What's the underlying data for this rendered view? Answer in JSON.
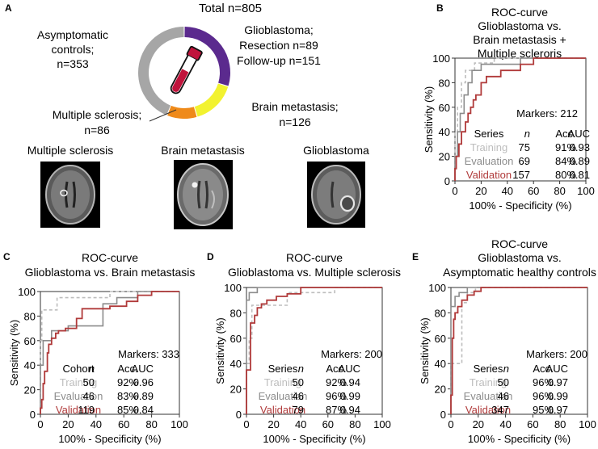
{
  "panel_labels": {
    "A": "A",
    "B": "B",
    "C": "C",
    "D": "D",
    "E": "E"
  },
  "colors": {
    "training": "#bdbdbd",
    "evaluation": "#8c8c8c",
    "validation": "#b03a3a",
    "tube": "#c0143c"
  },
  "donut": {
    "total": "Total n=805",
    "labels": {
      "asymptomatic": [
        "Asymptomatic",
        "controls;",
        "n=353"
      ],
      "glioblastoma": [
        "Glioblastoma;",
        "Resection n=89",
        "Follow-up n=151"
      ],
      "brain_metastasis": [
        "Brain metastasis;",
        "n=126"
      ],
      "multiple_sclerosis": [
        "Multiple sclerosis;",
        "n=86"
      ]
    }
  },
  "mri": {
    "labels": [
      "Multiple sclerosis",
      "Brain metastasis",
      "Glioblastoma"
    ]
  },
  "chart_data": [
    {
      "type": "pie",
      "title": "Total n=805",
      "slices": [
        {
          "name": "Glioblastoma",
          "value": 240,
          "color": "#5b2a8e"
        },
        {
          "name": "Brain metastasis",
          "value": 126,
          "color": "#f2f230"
        },
        {
          "name": "Multiple sclerosis",
          "value": 86,
          "color": "#ef8a1a"
        },
        {
          "name": "Asymptomatic controls",
          "value": 353,
          "color": "#a6a6a6"
        }
      ]
    },
    {
      "id": "B",
      "type": "line",
      "title": [
        "ROC-curve",
        "Glioblastoma vs.",
        "Brain metastasis +",
        "Multiple scleroris"
      ],
      "xlabel": "100% - Specificity (%)",
      "ylabel": "Sensitivity (%)",
      "xlim": [
        0,
        100
      ],
      "ylim": [
        0,
        100
      ],
      "xticks": [
        "0",
        "20",
        "40",
        "60",
        "80",
        "100"
      ],
      "yticks": [
        "0",
        "20",
        "40",
        "60",
        "80",
        "100"
      ],
      "markers": "Markers: 212",
      "legend": {
        "header": [
          "Series",
          "n",
          "Acc.",
          "AUC"
        ],
        "rows": [
          [
            "Training",
            "75",
            "91%",
            "0.93"
          ],
          [
            "Evaluation",
            "69",
            "84%",
            "0.89"
          ],
          [
            "Validation",
            "157",
            "80%",
            "0.81"
          ]
        ]
      },
      "series": [
        {
          "name": "Training",
          "style": "dashed",
          "points": [
            [
              0,
              0
            ],
            [
              0,
              40
            ],
            [
              2,
              40
            ],
            [
              2,
              60
            ],
            [
              5,
              60
            ],
            [
              5,
              80
            ],
            [
              8,
              80
            ],
            [
              8,
              90
            ],
            [
              15,
              90
            ],
            [
              15,
              96
            ],
            [
              30,
              96
            ],
            [
              30,
              100
            ],
            [
              100,
              100
            ]
          ]
        },
        {
          "name": "Evaluation",
          "points": [
            [
              0,
              0
            ],
            [
              0,
              20
            ],
            [
              2,
              20
            ],
            [
              2,
              40
            ],
            [
              4,
              40
            ],
            [
              4,
              55
            ],
            [
              7,
              55
            ],
            [
              7,
              70
            ],
            [
              10,
              70
            ],
            [
              10,
              80
            ],
            [
              13,
              80
            ],
            [
              13,
              90
            ],
            [
              20,
              90
            ],
            [
              20,
              95
            ],
            [
              50,
              95
            ],
            [
              50,
              100
            ],
            [
              100,
              100
            ]
          ]
        },
        {
          "name": "Validation",
          "points": [
            [
              0,
              0
            ],
            [
              0,
              10
            ],
            [
              1,
              10
            ],
            [
              1,
              20
            ],
            [
              3,
              20
            ],
            [
              3,
              30
            ],
            [
              5,
              30
            ],
            [
              5,
              40
            ],
            [
              8,
              40
            ],
            [
              8,
              48
            ],
            [
              10,
              48
            ],
            [
              10,
              55
            ],
            [
              12,
              55
            ],
            [
              12,
              60
            ],
            [
              14,
              60
            ],
            [
              14,
              66
            ],
            [
              16,
              66
            ],
            [
              16,
              70
            ],
            [
              20,
              70
            ],
            [
              20,
              80
            ],
            [
              24,
              80
            ],
            [
              24,
              85
            ],
            [
              35,
              85
            ],
            [
              35,
              90
            ],
            [
              50,
              90
            ],
            [
              50,
              95
            ],
            [
              60,
              95
            ],
            [
              60,
              100
            ],
            [
              100,
              100
            ]
          ]
        }
      ]
    },
    {
      "id": "C",
      "type": "line",
      "title": [
        "ROC-curve",
        "Glioblastoma vs. Brain metastasis"
      ],
      "xlabel": "100% - Specificity (%)",
      "ylabel": "Sensitivity (%)",
      "xlim": [
        0,
        100
      ],
      "ylim": [
        0,
        100
      ],
      "xticks": [
        "0",
        "20",
        "40",
        "60",
        "80",
        "100"
      ],
      "yticks": [
        "0",
        "20",
        "40",
        "60",
        "80",
        "100"
      ],
      "markers": "Markers: 333",
      "legend": {
        "header": [
          "Cohort",
          "n",
          "Acc.",
          "AUC"
        ],
        "rows": [
          [
            "Training",
            "50",
            "92%",
            "0.96"
          ],
          [
            "Evaluation",
            "46",
            "83%",
            "0.89"
          ],
          [
            "Validation",
            "119",
            "85%",
            "0.84"
          ]
        ]
      },
      "series": [
        {
          "name": "Training",
          "style": "dashed",
          "points": [
            [
              0,
              0
            ],
            [
              0,
              60
            ],
            [
              1,
              60
            ],
            [
              1,
              85
            ],
            [
              12,
              85
            ],
            [
              12,
              95
            ],
            [
              50,
              95
            ],
            [
              50,
              100
            ],
            [
              100,
              100
            ]
          ]
        },
        {
          "name": "Evaluation",
          "points": [
            [
              0,
              0
            ],
            [
              0,
              40
            ],
            [
              2,
              40
            ],
            [
              2,
              60
            ],
            [
              8,
              60
            ],
            [
              8,
              68
            ],
            [
              20,
              68
            ],
            [
              20,
              72
            ],
            [
              45,
              72
            ],
            [
              45,
              90
            ],
            [
              55,
              90
            ],
            [
              55,
              95
            ],
            [
              70,
              95
            ],
            [
              70,
              100
            ],
            [
              100,
              100
            ]
          ]
        },
        {
          "name": "Validation",
          "points": [
            [
              0,
              0
            ],
            [
              0,
              5
            ],
            [
              1,
              5
            ],
            [
              1,
              12
            ],
            [
              2,
              12
            ],
            [
              2,
              25
            ],
            [
              3,
              25
            ],
            [
              3,
              35
            ],
            [
              5,
              35
            ],
            [
              5,
              50
            ],
            [
              6,
              50
            ],
            [
              6,
              57
            ],
            [
              8,
              57
            ],
            [
              8,
              62
            ],
            [
              11,
              62
            ],
            [
              11,
              66
            ],
            [
              13,
              66
            ],
            [
              13,
              68
            ],
            [
              18,
              68
            ],
            [
              18,
              70
            ],
            [
              26,
              70
            ],
            [
              26,
              78
            ],
            [
              30,
              78
            ],
            [
              30,
              86
            ],
            [
              50,
              86
            ],
            [
              50,
              88
            ],
            [
              62,
              88
            ],
            [
              62,
              92
            ],
            [
              70,
              92
            ],
            [
              70,
              97
            ],
            [
              80,
              97
            ],
            [
              80,
              100
            ],
            [
              100,
              100
            ]
          ]
        }
      ]
    },
    {
      "id": "D",
      "type": "line",
      "title": [
        "ROC-curve",
        "Glioblastoma vs. Multiple sclerosis"
      ],
      "xlabel": "100% - Specificity (%)",
      "ylabel": "Sensitivity (%)",
      "xlim": [
        0,
        100
      ],
      "ylim": [
        0,
        100
      ],
      "xticks": [
        "0",
        "20",
        "40",
        "60",
        "80",
        "100"
      ],
      "yticks": [
        "0",
        "20",
        "40",
        "60",
        "80",
        "100"
      ],
      "markers": "Markers: 200",
      "legend": {
        "header": [
          "Series",
          "n",
          "Acc.",
          "AUC"
        ],
        "rows": [
          [
            "Training",
            "50",
            "92%",
            "0.94"
          ],
          [
            "Evaluation",
            "46",
            "96%",
            "0.99"
          ],
          [
            "Validation",
            "79",
            "87%",
            "0.94"
          ]
        ]
      },
      "series": [
        {
          "name": "Training",
          "style": "dashed",
          "points": [
            [
              0,
              0
            ],
            [
              0,
              40
            ],
            [
              2,
              40
            ],
            [
              2,
              60
            ],
            [
              4,
              60
            ],
            [
              4,
              86
            ],
            [
              30,
              86
            ],
            [
              30,
              96
            ],
            [
              65,
              96
            ],
            [
              65,
              100
            ],
            [
              100,
              100
            ]
          ]
        },
        {
          "name": "Evaluation",
          "points": [
            [
              0,
              0
            ],
            [
              0,
              90
            ],
            [
              2,
              90
            ],
            [
              2,
              96
            ],
            [
              8,
              96
            ],
            [
              8,
              100
            ],
            [
              100,
              100
            ]
          ]
        },
        {
          "name": "Validation",
          "points": [
            [
              0,
              0
            ],
            [
              0,
              35
            ],
            [
              3,
              35
            ],
            [
              3,
              72
            ],
            [
              6,
              72
            ],
            [
              6,
              78
            ],
            [
              8,
              78
            ],
            [
              8,
              84
            ],
            [
              11,
              84
            ],
            [
              11,
              87
            ],
            [
              15,
              87
            ],
            [
              15,
              90
            ],
            [
              22,
              90
            ],
            [
              22,
              93
            ],
            [
              30,
              93
            ],
            [
              30,
              95
            ],
            [
              40,
              95
            ],
            [
              40,
              100
            ],
            [
              100,
              100
            ]
          ]
        }
      ]
    },
    {
      "id": "E",
      "type": "line",
      "title": [
        "ROC-curve",
        "Glioblastoma vs.",
        "Asymptomatic healthy controls"
      ],
      "xlabel": "100% - Specificity (%)",
      "ylabel": "Sensitivity (%)",
      "xlim": [
        0,
        100
      ],
      "ylim": [
        0,
        100
      ],
      "xticks": [
        "0",
        "20",
        "40",
        "60",
        "80",
        "100"
      ],
      "yticks": [
        "0",
        "20",
        "40",
        "60",
        "80",
        "100"
      ],
      "markers": "Markers: 200",
      "legend": {
        "header": [
          "Series",
          "n",
          "Acc.",
          "AUC"
        ],
        "rows": [
          [
            "Training",
            "50",
            "96%",
            "0.97"
          ],
          [
            "Evaluation",
            "46",
            "96%",
            "0.99"
          ],
          [
            "Validation",
            "347",
            "95%",
            "0.97"
          ]
        ]
      },
      "series": [
        {
          "name": "Training",
          "style": "dashed",
          "points": [
            [
              0,
              0
            ],
            [
              0,
              40
            ],
            [
              8,
              40
            ],
            [
              8,
              88
            ],
            [
              12,
              88
            ],
            [
              12,
              96
            ],
            [
              18,
              96
            ],
            [
              18,
              100
            ],
            [
              100,
              100
            ]
          ]
        },
        {
          "name": "Evaluation",
          "points": [
            [
              0,
              0
            ],
            [
              0,
              85
            ],
            [
              3,
              85
            ],
            [
              3,
              93
            ],
            [
              6,
              93
            ],
            [
              6,
              96
            ],
            [
              12,
              96
            ],
            [
              12,
              100
            ],
            [
              100,
              100
            ]
          ]
        },
        {
          "name": "Validation",
          "points": [
            [
              0,
              0
            ],
            [
              0,
              15
            ],
            [
              1,
              15
            ],
            [
              1,
              60
            ],
            [
              2,
              60
            ],
            [
              2,
              75
            ],
            [
              3,
              75
            ],
            [
              3,
              80
            ],
            [
              5,
              80
            ],
            [
              5,
              85
            ],
            [
              8,
              85
            ],
            [
              8,
              90
            ],
            [
              12,
              90
            ],
            [
              12,
              94
            ],
            [
              17,
              94
            ],
            [
              17,
              97
            ],
            [
              22,
              97
            ],
            [
              22,
              100
            ],
            [
              100,
              100
            ]
          ]
        }
      ]
    }
  ]
}
